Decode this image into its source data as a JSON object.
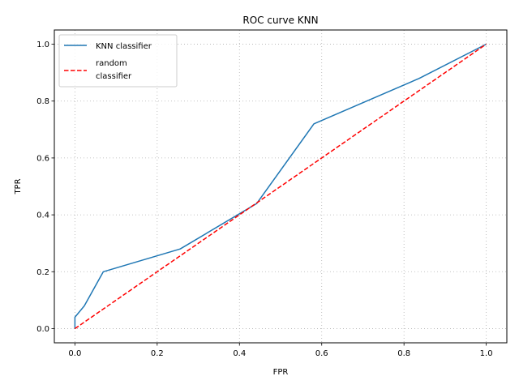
{
  "chart_data": {
    "type": "line",
    "title": "ROC curve KNN",
    "xlabel": "FPR",
    "ylabel": "TPR",
    "xlim": [
      -0.05,
      1.05
    ],
    "ylim": [
      -0.05,
      1.05
    ],
    "xticks": [
      0.0,
      0.2,
      0.4,
      0.6,
      0.8,
      1.0
    ],
    "yticks": [
      0.0,
      0.2,
      0.4,
      0.6,
      0.8,
      1.0
    ],
    "xtick_labels": [
      "0.0",
      "0.2",
      "0.4",
      "0.6",
      "0.8",
      "1.0"
    ],
    "ytick_labels": [
      "0.0",
      "0.2",
      "0.4",
      "0.6",
      "0.8",
      "1.0"
    ],
    "grid": true,
    "legend_position": "upper left",
    "series": [
      {
        "name": "KNN classifier",
        "color": "#1f77b4",
        "line_style": "solid",
        "x": [
          0.0,
          0.0,
          0.023,
          0.069,
          0.256,
          0.442,
          0.581,
          0.837,
          1.0
        ],
        "y": [
          0.0,
          0.04,
          0.08,
          0.2,
          0.28,
          0.44,
          0.72,
          0.88,
          1.0
        ]
      },
      {
        "name": "random classifier",
        "legend_lines": [
          "random",
          "classifier"
        ],
        "color": "#ff0000",
        "line_style": "dashed",
        "x": [
          0.0,
          1.0
        ],
        "y": [
          0.0,
          1.0
        ]
      }
    ]
  }
}
